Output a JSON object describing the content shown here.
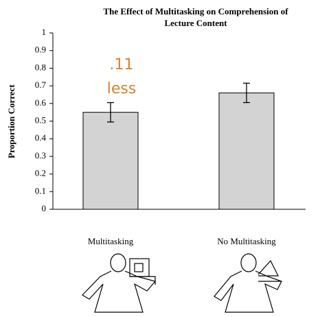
{
  "chart_data": {
    "type": "bar",
    "title": [
      "The Effect of Multitasking on Comprehension of",
      "Lecture Content"
    ],
    "y_label": "Proportion Correct",
    "categories": [
      "Multitasking",
      "No Multitasking"
    ],
    "values": [
      0.55,
      0.66
    ],
    "errors": [
      0.055,
      0.055
    ],
    "color": "#d3d3d3",
    "annotation": [
      ".11",
      "less"
    ],
    "ylim": [
      0,
      1
    ],
    "yticks": [
      0,
      0.1,
      0.2,
      0.3,
      0.4,
      0.5,
      0.6,
      0.7,
      0.8,
      0.9,
      1
    ],
    "grid": false
  }
}
